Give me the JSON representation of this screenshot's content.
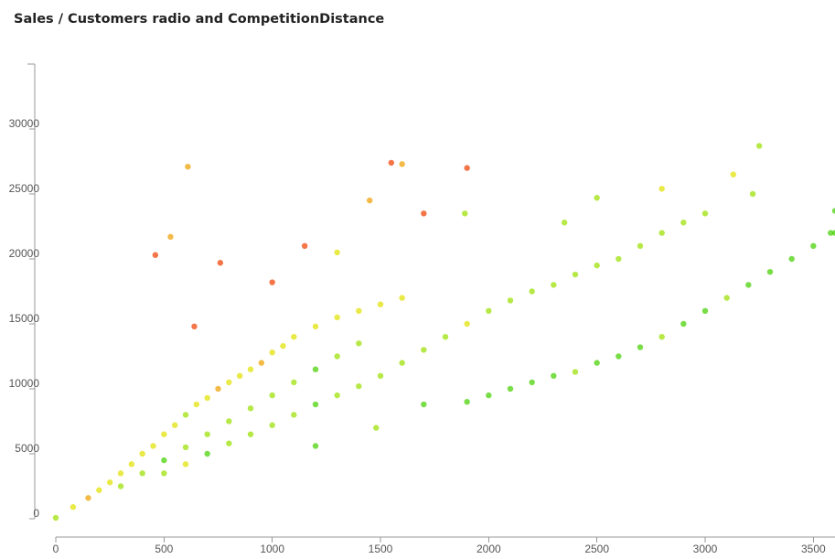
{
  "chart_data": {
    "type": "scatter",
    "title": "Sales / Customers radio and CompetitionDistance",
    "xlabel": "",
    "ylabel": "",
    "xlim": [
      0,
      3600
    ],
    "ylim": [
      0,
      35000
    ],
    "x_ticks": [
      0,
      500,
      1000,
      1500,
      2000,
      2500,
      3000,
      3500
    ],
    "y_ticks": [
      0,
      5000,
      10000,
      15000,
      20000,
      25000,
      30000
    ],
    "grid": false,
    "legend": "none",
    "color_scale": [
      "#44d000",
      "#9ae000",
      "#e0e000",
      "#f0a000",
      "#f04000"
    ],
    "series": [
      {
        "points": [
          [
            0,
            70
          ],
          [
            80,
            900
          ],
          [
            150,
            1600
          ],
          [
            200,
            2200
          ],
          [
            250,
            2800
          ],
          [
            300,
            3500
          ],
          [
            350,
            4200
          ],
          [
            400,
            5000
          ],
          [
            450,
            5600
          ],
          [
            500,
            6500
          ],
          [
            550,
            7200
          ],
          [
            600,
            8000
          ],
          [
            650,
            8800
          ],
          [
            700,
            9300
          ],
          [
            750,
            10000
          ],
          [
            800,
            10500
          ],
          [
            850,
            11000
          ],
          [
            900,
            11500
          ],
          [
            950,
            12000
          ],
          [
            1000,
            12800
          ],
          [
            1050,
            13300
          ],
          [
            1100,
            14000
          ],
          [
            1200,
            14800
          ],
          [
            1300,
            15500
          ],
          [
            1400,
            16000
          ],
          [
            1500,
            16500
          ],
          [
            1600,
            17000
          ],
          [
            300,
            2500
          ],
          [
            400,
            3500
          ],
          [
            500,
            4500
          ],
          [
            600,
            5500
          ],
          [
            700,
            6500
          ],
          [
            800,
            7500
          ],
          [
            900,
            8500
          ],
          [
            1000,
            9500
          ],
          [
            1100,
            10500
          ],
          [
            1200,
            11500
          ],
          [
            1300,
            12500
          ],
          [
            1400,
            13500
          ],
          [
            500,
            3500
          ],
          [
            600,
            4200
          ],
          [
            700,
            5000
          ],
          [
            800,
            5800
          ],
          [
            900,
            6500
          ],
          [
            1000,
            7200
          ],
          [
            1100,
            8000
          ],
          [
            1200,
            8800
          ],
          [
            1300,
            9500
          ],
          [
            1400,
            10200
          ],
          [
            1500,
            11000
          ],
          [
            1600,
            12000
          ],
          [
            1700,
            13000
          ],
          [
            1800,
            14000
          ],
          [
            1900,
            15000
          ],
          [
            2000,
            16000
          ],
          [
            2100,
            16800
          ],
          [
            2200,
            17500
          ],
          [
            2300,
            18000
          ],
          [
            2400,
            18800
          ],
          [
            2500,
            19500
          ],
          [
            2600,
            20000
          ],
          [
            2700,
            21000
          ],
          [
            2800,
            22000
          ],
          [
            2900,
            22800
          ],
          [
            3000,
            23500
          ],
          [
            1700,
            8800
          ],
          [
            1900,
            9000
          ],
          [
            2000,
            9500
          ],
          [
            2100,
            10000
          ],
          [
            2200,
            10500
          ],
          [
            2300,
            11000
          ],
          [
            2400,
            11300
          ],
          [
            2500,
            12000
          ],
          [
            2600,
            12500
          ],
          [
            2700,
            13200
          ],
          [
            2800,
            14000
          ],
          [
            2900,
            15000
          ],
          [
            3000,
            16000
          ],
          [
            3100,
            17000
          ],
          [
            3200,
            18000
          ],
          [
            3300,
            19000
          ],
          [
            3400,
            20000
          ],
          [
            3500,
            21000
          ],
          [
            3600,
            22000
          ],
          [
            460,
            20300
          ],
          [
            530,
            21700
          ],
          [
            610,
            27100
          ],
          [
            760,
            19700
          ],
          [
            640,
            14800
          ],
          [
            1550,
            27400
          ],
          [
            1600,
            27300
          ],
          [
            1900,
            27000
          ],
          [
            1890,
            23500
          ],
          [
            1450,
            24500
          ],
          [
            1300,
            20500
          ],
          [
            1700,
            23500
          ],
          [
            2350,
            22800
          ],
          [
            2500,
            24700
          ],
          [
            2800,
            25400
          ],
          [
            3130,
            26500
          ],
          [
            3250,
            28700
          ],
          [
            3220,
            25000
          ],
          [
            3580,
            22000
          ],
          [
            3600,
            23700
          ],
          [
            1200,
            5600
          ],
          [
            1480,
            7000
          ],
          [
            1000,
            18200
          ],
          [
            1150,
            21000
          ]
        ]
      }
    ]
  }
}
